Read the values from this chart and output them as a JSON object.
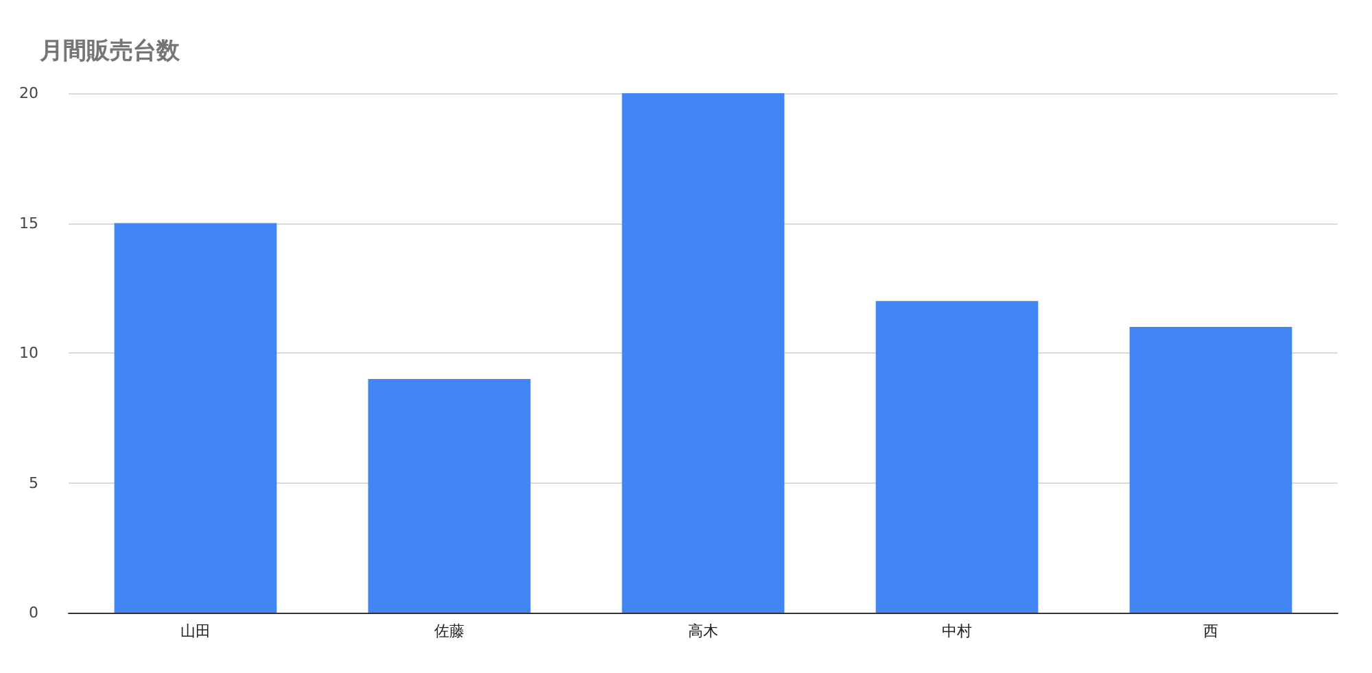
{
  "chart_data": {
    "type": "bar",
    "title": "月間販売台数",
    "categories": [
      "山田",
      "佐藤",
      "高木",
      "中村",
      "西"
    ],
    "values": [
      15,
      9,
      20,
      12,
      11
    ],
    "color": "#4285f4",
    "ylim": [
      0,
      20
    ],
    "yticks": [
      0,
      5,
      10,
      15,
      20
    ],
    "grid": "y"
  }
}
